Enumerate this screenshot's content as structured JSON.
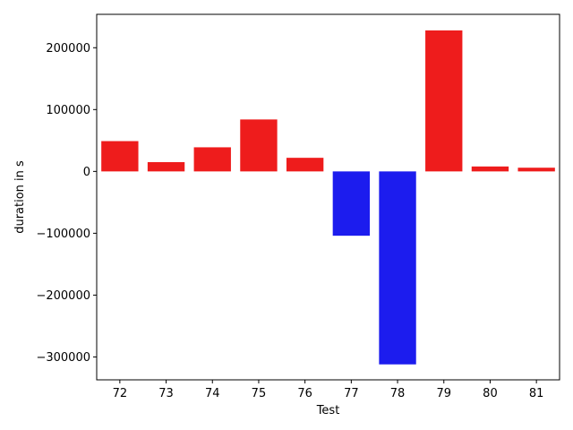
{
  "chart_data": {
    "type": "bar",
    "title": "",
    "xlabel": "Test",
    "ylabel": "duration in s",
    "categories": [
      "72",
      "73",
      "74",
      "75",
      "76",
      "77",
      "78",
      "79",
      "80",
      "81"
    ],
    "values": [
      49000,
      15000,
      39000,
      84000,
      22000,
      -104000,
      -312000,
      228000,
      8000,
      6000
    ],
    "ylim": [
      -337000,
      254000
    ],
    "yticks": [
      -300000,
      -200000,
      -100000,
      0,
      100000,
      200000
    ],
    "ytick_labels": [
      "−300000",
      "−200000",
      "−100000",
      "0",
      "100000",
      "200000"
    ],
    "positive_color": "#ee1c1c",
    "negative_color": "#1c1cee",
    "grid": false,
    "legend": "none"
  }
}
